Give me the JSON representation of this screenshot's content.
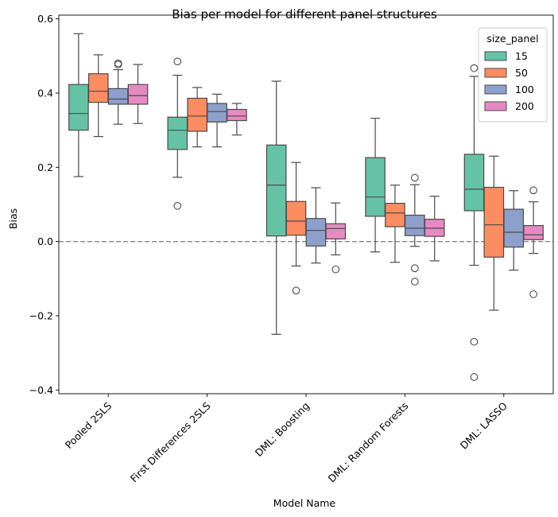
{
  "chart_data": {
    "type": "box",
    "title": "Bias per model for different panel structures",
    "xlabel": "Model Name",
    "ylabel": "Bias",
    "ylim": [
      -0.41,
      0.61
    ],
    "yticks": [
      -0.4,
      -0.2,
      0.0,
      0.2,
      0.4,
      0.6
    ],
    "ytick_labels": [
      "−0.4",
      "−0.2",
      "0.0",
      "0.2",
      "0.4",
      "0.6"
    ],
    "reference_line": 0.0,
    "grid": false,
    "legend": {
      "title": "size_panel",
      "placement": "top-right"
    },
    "categories": [
      "Pooled 2SLS",
      "First Differences 2SLS",
      "DML: Boosting",
      "DML: Random Forests",
      "DML: LASSO"
    ],
    "series": [
      {
        "name": "15",
        "color": "#66c2a5",
        "boxes": [
          {
            "whislo": 0.175,
            "q1": 0.3,
            "med": 0.345,
            "q3": 0.423,
            "whishi": 0.56,
            "fliers": []
          },
          {
            "whislo": 0.173,
            "q1": 0.248,
            "med": 0.3,
            "q3": 0.335,
            "whishi": 0.448,
            "fliers": [
              0.485,
              0.096
            ]
          },
          {
            "whislo": -0.25,
            "q1": 0.015,
            "med": 0.152,
            "q3": 0.26,
            "whishi": 0.432,
            "fliers": []
          },
          {
            "whislo": -0.028,
            "q1": 0.068,
            "med": 0.12,
            "q3": 0.226,
            "whishi": 0.332,
            "fliers": []
          },
          {
            "whislo": -0.064,
            "q1": 0.083,
            "med": 0.141,
            "q3": 0.235,
            "whishi": 0.445,
            "fliers": [
              0.467,
              -0.27,
              -0.365
            ]
          }
        ]
      },
      {
        "name": "50",
        "color": "#fc8d62",
        "boxes": [
          {
            "whislo": 0.283,
            "q1": 0.375,
            "med": 0.405,
            "q3": 0.452,
            "whishi": 0.503,
            "fliers": []
          },
          {
            "whislo": 0.255,
            "q1": 0.297,
            "med": 0.338,
            "q3": 0.386,
            "whishi": 0.415,
            "fliers": []
          },
          {
            "whislo": -0.066,
            "q1": 0.017,
            "med": 0.055,
            "q3": 0.108,
            "whishi": 0.213,
            "fliers": [
              -0.132
            ]
          },
          {
            "whislo": -0.056,
            "q1": 0.04,
            "med": 0.077,
            "q3": 0.103,
            "whishi": 0.152,
            "fliers": []
          },
          {
            "whislo": -0.185,
            "q1": -0.042,
            "med": 0.045,
            "q3": 0.146,
            "whishi": 0.23,
            "fliers": []
          }
        ]
      },
      {
        "name": "100",
        "color": "#8da0cb",
        "boxes": [
          {
            "whislo": 0.316,
            "q1": 0.37,
            "med": 0.384,
            "q3": 0.412,
            "whishi": 0.463,
            "fliers": [
              0.477,
              0.48
            ]
          },
          {
            "whislo": 0.255,
            "q1": 0.322,
            "med": 0.35,
            "q3": 0.372,
            "whishi": 0.397,
            "fliers": []
          },
          {
            "whislo": -0.058,
            "q1": -0.012,
            "med": 0.03,
            "q3": 0.062,
            "whishi": 0.145,
            "fliers": []
          },
          {
            "whislo": -0.013,
            "q1": 0.016,
            "med": 0.036,
            "q3": 0.071,
            "whishi": 0.153,
            "fliers": [
              0.172,
              -0.072,
              -0.108
            ]
          },
          {
            "whislo": -0.077,
            "q1": -0.015,
            "med": 0.025,
            "q3": 0.087,
            "whishi": 0.137,
            "fliers": []
          }
        ]
      },
      {
        "name": "200",
        "color": "#e78ac3",
        "boxes": [
          {
            "whislo": 0.318,
            "q1": 0.37,
            "med": 0.393,
            "q3": 0.423,
            "whishi": 0.477,
            "fliers": []
          },
          {
            "whislo": 0.287,
            "q1": 0.326,
            "med": 0.338,
            "q3": 0.356,
            "whishi": 0.372,
            "fliers": []
          },
          {
            "whislo": -0.036,
            "q1": 0.007,
            "med": 0.035,
            "q3": 0.048,
            "whishi": 0.104,
            "fliers": [
              -0.075
            ]
          },
          {
            "whislo": -0.052,
            "q1": 0.014,
            "med": 0.036,
            "q3": 0.06,
            "whishi": 0.122,
            "fliers": []
          },
          {
            "whislo": -0.032,
            "q1": 0.005,
            "med": 0.018,
            "q3": 0.043,
            "whishi": 0.107,
            "fliers": [
              0.138,
              -0.142
            ]
          }
        ]
      }
    ]
  }
}
